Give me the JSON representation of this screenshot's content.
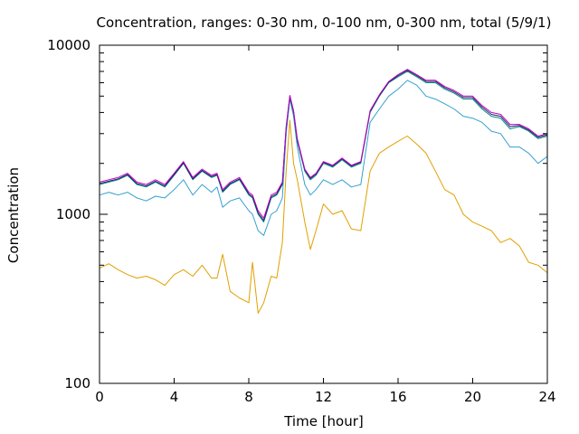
{
  "chart_data": {
    "type": "line",
    "title": "Concentration, ranges: 0-30 nm, 0-100 nm, 0-300 nm, total (5/9/1)",
    "xlabel": "Time [hour]",
    "ylabel": "Concentration",
    "xlim": [
      0,
      24
    ],
    "ylim": [
      100,
      10000
    ],
    "y_scale": "log",
    "grid": false,
    "legend": "none",
    "x_ticks": [
      0,
      4,
      8,
      12,
      16,
      20,
      24
    ],
    "x_tick_labels": [
      "0",
      "4",
      "8",
      "12",
      "16",
      "20",
      "24"
    ],
    "y_ticks": [
      100,
      1000,
      10000
    ],
    "y_tick_labels": [
      "100",
      "1000",
      "10000"
    ],
    "series": [
      {
        "color": "#e0a000",
        "x": [
          0,
          0.5,
          1,
          1.5,
          2,
          2.5,
          3,
          3.5,
          4,
          4.5,
          5,
          5.5,
          6,
          6.3,
          6.6,
          7,
          7.5,
          8,
          8.2,
          8.5,
          8.8,
          9.2,
          9.5,
          9.8,
          10,
          10.2,
          10.4,
          10.6,
          11,
          11.3,
          11.6,
          12,
          12.5,
          13,
          13.5,
          14,
          14.5,
          15,
          15.5,
          16,
          16.5,
          17,
          17.5,
          18,
          18.5,
          19,
          19.5,
          20,
          20.5,
          21,
          21.5,
          22,
          22.5,
          23,
          23.5,
          24
        ],
        "values": [
          480,
          510,
          470,
          440,
          420,
          430,
          410,
          380,
          440,
          470,
          430,
          500,
          420,
          420,
          580,
          350,
          320,
          300,
          520,
          260,
          300,
          430,
          420,
          680,
          1800,
          3600,
          2000,
          1600,
          900,
          620,
          800,
          1150,
          1000,
          1050,
          820,
          800,
          1800,
          2300,
          2500,
          2700,
          2900,
          2600,
          2300,
          1800,
          1400,
          1300,
          1000,
          900,
          850,
          800,
          680,
          720,
          650,
          520,
          500,
          450
        ]
      },
      {
        "color": "#33a0d0",
        "x": [
          0,
          0.5,
          1,
          1.5,
          2,
          2.5,
          3,
          3.5,
          4,
          4.5,
          5,
          5.5,
          6,
          6.3,
          6.6,
          7,
          7.5,
          8,
          8.2,
          8.5,
          8.8,
          9.2,
          9.5,
          9.8,
          10,
          10.2,
          10.4,
          10.6,
          11,
          11.3,
          11.6,
          12,
          12.5,
          13,
          13.5,
          14,
          14.5,
          15,
          15.5,
          16,
          16.5,
          17,
          17.5,
          18,
          18.5,
          19,
          19.5,
          20,
          20.5,
          21,
          21.5,
          22,
          22.5,
          23,
          23.5,
          24
        ],
        "values": [
          1300,
          1350,
          1300,
          1350,
          1250,
          1200,
          1280,
          1250,
          1400,
          1600,
          1300,
          1500,
          1350,
          1450,
          1100,
          1200,
          1250,
          1050,
          1000,
          800,
          750,
          1000,
          1050,
          1250,
          3000,
          4800,
          3800,
          2500,
          1500,
          1300,
          1400,
          1600,
          1500,
          1600,
          1450,
          1500,
          3500,
          4200,
          5000,
          5500,
          6200,
          5800,
          5000,
          4800,
          4500,
          4200,
          3800,
          3700,
          3500,
          3100,
          3000,
          2500,
          2500,
          2300,
          2000,
          2200
        ]
      },
      {
        "color": "#008f7a",
        "x": [
          0,
          0.5,
          1,
          1.5,
          2,
          2.5,
          3,
          3.5,
          4,
          4.5,
          5,
          5.5,
          6,
          6.3,
          6.6,
          7,
          7.5,
          8,
          8.2,
          8.5,
          8.8,
          9.2,
          9.5,
          9.8,
          10,
          10.2,
          10.4,
          10.6,
          11,
          11.3,
          11.6,
          12,
          12.5,
          13,
          13.5,
          14,
          14.5,
          15,
          15.5,
          16,
          16.5,
          17,
          17.5,
          18,
          18.5,
          19,
          19.5,
          20,
          20.5,
          21,
          21.5,
          22,
          22.5,
          23,
          23.5,
          24
        ],
        "values": [
          1500,
          1550,
          1600,
          1700,
          1500,
          1450,
          1550,
          1450,
          1700,
          2000,
          1600,
          1800,
          1650,
          1700,
          1350,
          1500,
          1600,
          1300,
          1250,
          1000,
          900,
          1250,
          1300,
          1500,
          3200,
          4900,
          4000,
          2700,
          1800,
          1600,
          1700,
          2000,
          1900,
          2100,
          1900,
          2000,
          4000,
          5000,
          6000,
          6500,
          7000,
          6500,
          6000,
          6000,
          5500,
          5200,
          4800,
          4800,
          4200,
          3800,
          3700,
          3200,
          3300,
          3100,
          2800,
          2900
        ]
      },
      {
        "color": "#202070",
        "x": [
          0,
          0.5,
          1,
          1.5,
          2,
          2.5,
          3,
          3.5,
          4,
          4.5,
          5,
          5.5,
          6,
          6.3,
          6.6,
          7,
          7.5,
          8,
          8.2,
          8.5,
          8.8,
          9.2,
          9.5,
          9.8,
          10,
          10.2,
          10.4,
          10.6,
          11,
          11.3,
          11.6,
          12,
          12.5,
          13,
          13.5,
          14,
          14.5,
          15,
          15.5,
          16,
          16.5,
          17,
          17.5,
          18,
          18.5,
          19,
          19.5,
          20,
          20.5,
          21,
          21.5,
          22,
          22.5,
          23,
          23.5,
          24
        ],
        "values": [
          1520,
          1570,
          1620,
          1720,
          1520,
          1470,
          1570,
          1470,
          1720,
          2020,
          1620,
          1820,
          1670,
          1720,
          1370,
          1520,
          1620,
          1320,
          1270,
          1020,
          920,
          1270,
          1320,
          1520,
          3250,
          5000,
          4050,
          2750,
          1830,
          1630,
          1730,
          2030,
          1930,
          2130,
          1930,
          2030,
          4050,
          5050,
          6050,
          6600,
          7100,
          6600,
          6100,
          6100,
          5600,
          5300,
          4900,
          4900,
          4300,
          3900,
          3800,
          3300,
          3350,
          3150,
          2850,
          2950
        ]
      },
      {
        "color": "#c000c0",
        "x": [
          0,
          0.5,
          1,
          1.5,
          2,
          2.5,
          3,
          3.5,
          4,
          4.5,
          5,
          5.5,
          6,
          6.3,
          6.6,
          7,
          7.5,
          8,
          8.2,
          8.5,
          8.8,
          9.2,
          9.5,
          9.8,
          10,
          10.2,
          10.4,
          10.6,
          11,
          11.3,
          11.6,
          12,
          12.5,
          13,
          13.5,
          14,
          14.5,
          15,
          15.5,
          16,
          16.5,
          17,
          17.5,
          18,
          18.5,
          19,
          19.5,
          20,
          20.5,
          21,
          21.5,
          22,
          22.5,
          23,
          23.5,
          24
        ],
        "values": [
          1550,
          1600,
          1650,
          1750,
          1550,
          1500,
          1600,
          1500,
          1750,
          2050,
          1650,
          1850,
          1700,
          1750,
          1400,
          1550,
          1650,
          1350,
          1300,
          1050,
          950,
          1300,
          1350,
          1550,
          3300,
          5050,
          4100,
          2800,
          1850,
          1650,
          1750,
          2050,
          1950,
          2150,
          1950,
          2050,
          4100,
          5100,
          6100,
          6700,
          7200,
          6700,
          6200,
          6200,
          5700,
          5400,
          5000,
          5000,
          4400,
          4000,
          3900,
          3400,
          3400,
          3200,
          2900,
          3000
        ]
      }
    ]
  }
}
